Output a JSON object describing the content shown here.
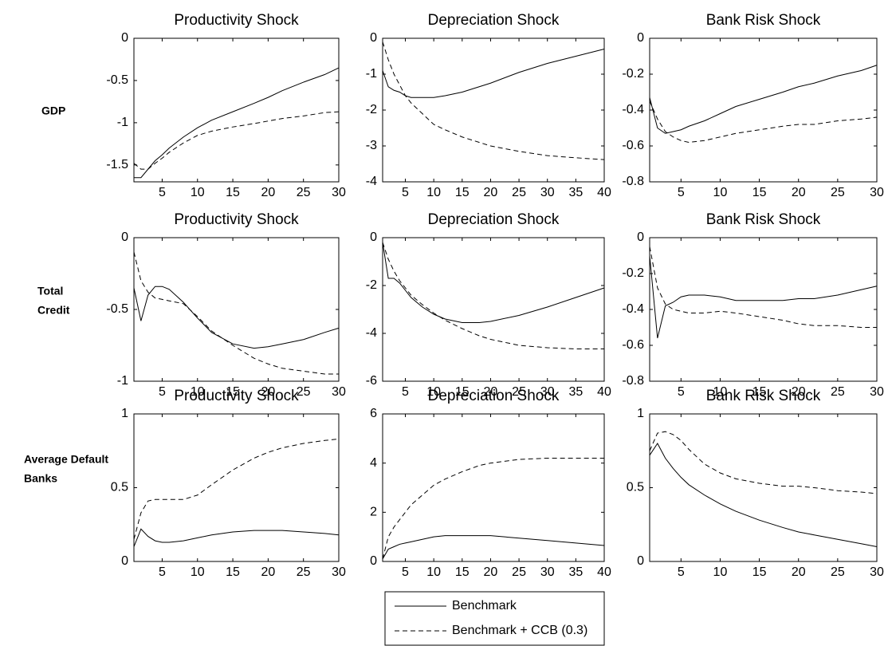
{
  "chart_data": [
    {
      "type": "line",
      "title": "Productivity Shock",
      "x": [
        1,
        2,
        3,
        4,
        5,
        6,
        8,
        10,
        12,
        15,
        18,
        20,
        22,
        25,
        28,
        30
      ],
      "xlim": [
        1,
        30
      ],
      "xticks": [
        5,
        10,
        15,
        20,
        25,
        30
      ],
      "ylim": [
        -1.7,
        0
      ],
      "yticks": [
        -1.5,
        -1,
        -0.5,
        0
      ],
      "series": [
        {
          "name": "Benchmark",
          "color": "#000000",
          "line_style": "solid",
          "values": [
            -1.65,
            -1.65,
            -1.55,
            -1.45,
            -1.38,
            -1.3,
            -1.17,
            -1.06,
            -0.97,
            -0.87,
            -0.77,
            -0.7,
            -0.62,
            -0.52,
            -0.43,
            -0.35
          ]
        },
        {
          "name": "Benchmark + CCB (0.3)",
          "color": "#000000",
          "line_style": "dashed",
          "values": [
            -1.48,
            -1.55,
            -1.55,
            -1.48,
            -1.42,
            -1.35,
            -1.24,
            -1.15,
            -1.1,
            -1.05,
            -1.01,
            -0.98,
            -0.95,
            -0.92,
            -0.88,
            -0.87
          ]
        }
      ]
    },
    {
      "type": "line",
      "title": "Depreciation Shock",
      "x": [
        1,
        2,
        3,
        4,
        5,
        6,
        8,
        10,
        12,
        15,
        18,
        20,
        25,
        30,
        35,
        40
      ],
      "xlim": [
        1,
        40
      ],
      "xticks": [
        5,
        10,
        15,
        20,
        25,
        30,
        35,
        40
      ],
      "ylim": [
        -4,
        0
      ],
      "yticks": [
        -4,
        -3,
        -2,
        -1,
        0
      ],
      "series": [
        {
          "name": "Benchmark",
          "color": "#000000",
          "line_style": "solid",
          "values": [
            -0.9,
            -1.35,
            -1.45,
            -1.5,
            -1.6,
            -1.65,
            -1.65,
            -1.65,
            -1.6,
            -1.5,
            -1.35,
            -1.25,
            -0.95,
            -0.7,
            -0.5,
            -0.3
          ]
        },
        {
          "name": "Benchmark + CCB (0.3)",
          "color": "#000000",
          "line_style": "dashed",
          "values": [
            -0.1,
            -0.6,
            -1.0,
            -1.3,
            -1.6,
            -1.8,
            -2.1,
            -2.4,
            -2.55,
            -2.75,
            -2.9,
            -3.0,
            -3.15,
            -3.27,
            -3.33,
            -3.38
          ]
        }
      ]
    },
    {
      "type": "line",
      "title": "Bank Risk Shock",
      "x": [
        1,
        2,
        3,
        4,
        5,
        6,
        8,
        10,
        12,
        15,
        18,
        20,
        22,
        25,
        28,
        30
      ],
      "xlim": [
        1,
        30
      ],
      "xticks": [
        5,
        10,
        15,
        20,
        25,
        30
      ],
      "ylim": [
        -0.8,
        0
      ],
      "yticks": [
        -0.8,
        -0.6,
        -0.4,
        -0.2,
        0
      ],
      "series": [
        {
          "name": "Benchmark",
          "color": "#000000",
          "line_style": "solid",
          "values": [
            -0.33,
            -0.5,
            -0.53,
            -0.52,
            -0.51,
            -0.49,
            -0.46,
            -0.42,
            -0.38,
            -0.34,
            -0.3,
            -0.27,
            -0.25,
            -0.21,
            -0.18,
            -0.15
          ]
        },
        {
          "name": "Benchmark + CCB (0.3)",
          "color": "#000000",
          "line_style": "dashed",
          "values": [
            -0.35,
            -0.45,
            -0.52,
            -0.55,
            -0.57,
            -0.58,
            -0.57,
            -0.55,
            -0.53,
            -0.51,
            -0.49,
            -0.48,
            -0.48,
            -0.46,
            -0.45,
            -0.44
          ]
        }
      ]
    },
    {
      "type": "line",
      "title": "Productivity Shock",
      "x": [
        1,
        2,
        3,
        4,
        5,
        6,
        8,
        10,
        12,
        15,
        18,
        20,
        22,
        25,
        28,
        30
      ],
      "xlim": [
        1,
        30
      ],
      "xticks": [
        5,
        10,
        15,
        20,
        25,
        30
      ],
      "ylim": [
        -1,
        0
      ],
      "yticks": [
        -1,
        -0.5,
        0
      ],
      "series": [
        {
          "name": "Benchmark",
          "color": "#000000",
          "line_style": "solid",
          "values": [
            -0.35,
            -0.58,
            -0.4,
            -0.34,
            -0.34,
            -0.36,
            -0.45,
            -0.56,
            -0.66,
            -0.74,
            -0.77,
            -0.76,
            -0.74,
            -0.71,
            -0.66,
            -0.63
          ]
        },
        {
          "name": "Benchmark + CCB (0.3)",
          "color": "#000000",
          "line_style": "dashed",
          "values": [
            -0.1,
            -0.3,
            -0.38,
            -0.42,
            -0.43,
            -0.44,
            -0.46,
            -0.55,
            -0.65,
            -0.75,
            -0.84,
            -0.88,
            -0.91,
            -0.93,
            -0.95,
            -0.95
          ]
        }
      ]
    },
    {
      "type": "line",
      "title": "Depreciation Shock",
      "x": [
        1,
        2,
        3,
        4,
        5,
        6,
        8,
        10,
        12,
        15,
        18,
        20,
        25,
        30,
        35,
        40
      ],
      "xlim": [
        1,
        40
      ],
      "xticks": [
        5,
        10,
        15,
        20,
        25,
        30,
        35,
        40
      ],
      "ylim": [
        -6,
        0
      ],
      "yticks": [
        -6,
        -4,
        -2,
        0
      ],
      "series": [
        {
          "name": "Benchmark",
          "color": "#000000",
          "line_style": "solid",
          "values": [
            -0.2,
            -1.7,
            -1.7,
            -1.9,
            -2.2,
            -2.5,
            -2.9,
            -3.2,
            -3.4,
            -3.55,
            -3.55,
            -3.5,
            -3.25,
            -2.9,
            -2.5,
            -2.1
          ]
        },
        {
          "name": "Benchmark + CCB (0.3)",
          "color": "#000000",
          "line_style": "dashed",
          "values": [
            -0.2,
            -0.9,
            -1.4,
            -1.8,
            -2.1,
            -2.4,
            -2.8,
            -3.15,
            -3.45,
            -3.8,
            -4.1,
            -4.25,
            -4.5,
            -4.6,
            -4.65,
            -4.65
          ]
        }
      ]
    },
    {
      "type": "line",
      "title": "Bank Risk Shock",
      "x": [
        1,
        2,
        3,
        4,
        5,
        6,
        8,
        10,
        12,
        15,
        18,
        20,
        22,
        25,
        28,
        30
      ],
      "xlim": [
        1,
        30
      ],
      "xticks": [
        5,
        10,
        15,
        20,
        25,
        30
      ],
      "ylim": [
        -0.8,
        0
      ],
      "yticks": [
        -0.8,
        -0.6,
        -0.4,
        -0.2,
        0
      ],
      "series": [
        {
          "name": "Benchmark",
          "color": "#000000",
          "line_style": "solid",
          "values": [
            -0.1,
            -0.56,
            -0.38,
            -0.36,
            -0.33,
            -0.32,
            -0.32,
            -0.33,
            -0.35,
            -0.35,
            -0.35,
            -0.34,
            -0.34,
            -0.32,
            -0.29,
            -0.27
          ]
        },
        {
          "name": "Benchmark + CCB (0.3)",
          "color": "#000000",
          "line_style": "dashed",
          "values": [
            -0.05,
            -0.28,
            -0.37,
            -0.4,
            -0.41,
            -0.42,
            -0.42,
            -0.41,
            -0.42,
            -0.44,
            -0.46,
            -0.48,
            -0.49,
            -0.49,
            -0.5,
            -0.5
          ]
        }
      ]
    },
    {
      "type": "line",
      "title": "Productivity Shock",
      "x": [
        1,
        2,
        3,
        4,
        5,
        6,
        8,
        10,
        12,
        15,
        18,
        20,
        22,
        25,
        28,
        30
      ],
      "xlim": [
        1,
        30
      ],
      "xticks": [
        5,
        10,
        15,
        20,
        25,
        30
      ],
      "ylim": [
        0,
        1
      ],
      "yticks": [
        0,
        0.5,
        1
      ],
      "series": [
        {
          "name": "Benchmark",
          "color": "#000000",
          "line_style": "solid",
          "values": [
            0.1,
            0.22,
            0.17,
            0.14,
            0.13,
            0.13,
            0.14,
            0.16,
            0.18,
            0.2,
            0.21,
            0.21,
            0.21,
            0.2,
            0.19,
            0.18
          ]
        },
        {
          "name": "Benchmark + CCB (0.3)",
          "color": "#000000",
          "line_style": "dashed",
          "values": [
            0.15,
            0.33,
            0.41,
            0.42,
            0.42,
            0.42,
            0.42,
            0.45,
            0.52,
            0.62,
            0.7,
            0.74,
            0.77,
            0.8,
            0.82,
            0.83
          ]
        }
      ]
    },
    {
      "type": "line",
      "title": "Depreciation Shock",
      "x": [
        1,
        2,
        3,
        4,
        5,
        6,
        8,
        10,
        12,
        15,
        18,
        20,
        25,
        30,
        35,
        40
      ],
      "xlim": [
        1,
        40
      ],
      "xticks": [
        5,
        10,
        15,
        20,
        25,
        30,
        35,
        40
      ],
      "ylim": [
        0,
        6
      ],
      "yticks": [
        0,
        2,
        4,
        6
      ],
      "series": [
        {
          "name": "Benchmark",
          "color": "#000000",
          "line_style": "solid",
          "values": [
            0.1,
            0.5,
            0.6,
            0.7,
            0.75,
            0.8,
            0.9,
            1.0,
            1.05,
            1.05,
            1.05,
            1.05,
            0.95,
            0.85,
            0.75,
            0.65
          ]
        },
        {
          "name": "Benchmark + CCB (0.3)",
          "color": "#000000",
          "line_style": "dashed",
          "values": [
            0.1,
            1.0,
            1.4,
            1.7,
            2.0,
            2.3,
            2.7,
            3.1,
            3.35,
            3.65,
            3.9,
            4.0,
            4.15,
            4.2,
            4.2,
            4.2
          ]
        }
      ]
    },
    {
      "type": "line",
      "title": "Bank Risk Shock",
      "x": [
        1,
        2,
        3,
        4,
        5,
        6,
        8,
        10,
        12,
        15,
        18,
        20,
        22,
        25,
        28,
        30
      ],
      "xlim": [
        1,
        30
      ],
      "xticks": [
        5,
        10,
        15,
        20,
        25,
        30
      ],
      "ylim": [
        0,
        1
      ],
      "yticks": [
        0,
        0.5,
        1
      ],
      "series": [
        {
          "name": "Benchmark",
          "color": "#000000",
          "line_style": "solid",
          "values": [
            0.72,
            0.8,
            0.7,
            0.63,
            0.57,
            0.52,
            0.45,
            0.39,
            0.34,
            0.28,
            0.23,
            0.2,
            0.18,
            0.15,
            0.12,
            0.1
          ]
        },
        {
          "name": "Benchmark + CCB (0.3)",
          "color": "#000000",
          "line_style": "dashed",
          "values": [
            0.75,
            0.87,
            0.88,
            0.86,
            0.82,
            0.76,
            0.66,
            0.6,
            0.56,
            0.53,
            0.51,
            0.51,
            0.5,
            0.48,
            0.47,
            0.46
          ]
        }
      ]
    }
  ],
  "row_labels": [
    [
      "GDP"
    ],
    [
      "Total",
      "Credit"
    ],
    [
      "Average Default",
      "Banks"
    ]
  ]
}
